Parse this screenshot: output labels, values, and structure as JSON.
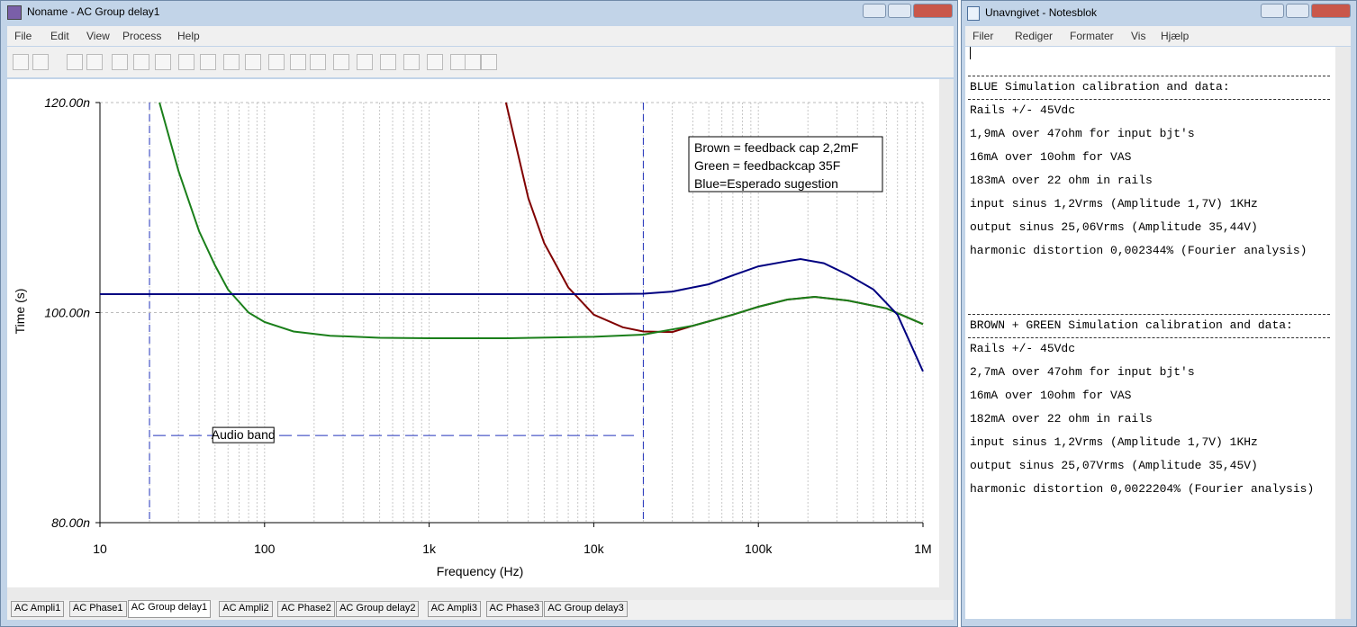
{
  "left_window": {
    "title": "Noname - AC Group delay1",
    "menu": [
      "File",
      "Edit",
      "View",
      "Process",
      "Help"
    ],
    "tabs": [
      "AC Ampli1",
      "AC Phase1",
      "AC Group delay1",
      "AC Ampli2",
      "AC Phase2",
      "AC Group delay2",
      "AC Ampli3",
      "AC Phase3",
      "AC Group delay3"
    ],
    "active_tab": 2
  },
  "chart_data": {
    "type": "line",
    "xlabel": "Frequency (Hz)",
    "ylabel": "Time (s)",
    "xscale": "log",
    "xlim": [
      10,
      1000000
    ],
    "ylim": [
      8e-08,
      1.2e-07
    ],
    "xticks": [
      10,
      100,
      {
        "value": 1000,
        "label": "1k"
      },
      {
        "value": 10000,
        "label": "10k"
      },
      {
        "value": 100000,
        "label": "100k"
      },
      {
        "value": 1000000,
        "label": "1M"
      }
    ],
    "yticks": [
      {
        "value": 8e-08,
        "label": "80.00n"
      },
      {
        "value": 1e-07,
        "label": "100.00n"
      },
      {
        "value": 1.2e-07,
        "label": "120.00n"
      }
    ],
    "grid": true,
    "series": [
      {
        "name": "Brown = feedback cap 2,2mF",
        "color": "#800000",
        "x": [
          2930,
          4000,
          5000,
          7000,
          10000,
          15000,
          20000,
          30000,
          40000,
          70000,
          100000,
          150000,
          220000,
          350000,
          600000,
          1000000
        ],
        "values": [
          1.2e-07,
          1.109e-07,
          1.066e-07,
          1.024e-07,
          9.98e-08,
          9.86e-08,
          9.82e-08,
          9.815e-08,
          9.875e-08,
          9.98e-08,
          1.0056e-07,
          1.0124e-07,
          1.015e-07,
          1.0115e-07,
          1.004e-07,
          9.89e-08
        ]
      },
      {
        "name": "Green = feedbackcap 35F",
        "color": "#1a7f1a",
        "x": [
          23,
          30,
          40,
          50,
          60,
          80,
          100,
          150,
          250,
          500,
          1000,
          3000,
          10000,
          20000,
          40000,
          70000,
          100000,
          150000,
          220000,
          350000,
          600000,
          1000000
        ],
        "values": [
          1.2e-07,
          1.135e-07,
          1.0775e-07,
          1.045e-07,
          1.022e-07,
          1e-07,
          9.91e-08,
          9.82e-08,
          9.78e-08,
          9.76e-08,
          9.756e-08,
          9.756e-08,
          9.77e-08,
          9.79e-08,
          9.875e-08,
          9.98e-08,
          1.0056e-07,
          1.0124e-07,
          1.015e-07,
          1.0115e-07,
          1.004e-07,
          9.89e-08
        ]
      },
      {
        "name": "Blue=Esperado sugestion",
        "color": "#000080",
        "x": [
          10,
          10000,
          20000,
          30000,
          50000,
          70000,
          100000,
          150000,
          180000,
          250000,
          350000,
          500000,
          700000,
          1000000
        ],
        "values": [
          1.0176e-07,
          1.0176e-07,
          1.018e-07,
          1.02e-07,
          1.027e-07,
          1.0355e-07,
          1.044e-07,
          1.049e-07,
          1.051e-07,
          1.047e-07,
          1.036e-07,
          1.022e-07,
          9.98e-08,
          9.44e-08
        ]
      }
    ],
    "band": {
      "label": "Audio band",
      "x": [
        20,
        20000
      ],
      "y": 8.83e-08
    }
  },
  "right_window": {
    "title": "Unavngivet - Notesblok",
    "menu": [
      "Filer",
      "Rediger",
      "Formater",
      "Vis",
      "Hjælp"
    ],
    "blocks": [
      {
        "heading": "BLUE Simulation calibration and data:",
        "lines": [
          "Rails +/- 45Vdc",
          "1,9mA over 47ohm for input bjt's",
          "16mA over 10ohm for VAS",
          "183mA over 22 ohm in rails",
          "input sinus 1,2Vrms (Amplitude 1,7V) 1KHz",
          "output sinus 25,06Vrms (Amplitude 35,44V)",
          "harmonic distortion 0,002344% (Fourier analysis)"
        ]
      },
      {
        "heading": "BROWN + GREEN Simulation calibration and data:",
        "lines": [
          "Rails +/- 45Vdc",
          "2,7mA over 47ohm for input bjt's",
          "16mA over 10ohm for VAS",
          "182mA over 22 ohm in rails",
          "input sinus 1,2Vrms (Amplitude 1,7V) 1KHz",
          "output sinus 25,07Vrms (Amplitude 35,45V)",
          "harmonic distortion 0,0022204% (Fourier analysis)"
        ]
      }
    ]
  }
}
